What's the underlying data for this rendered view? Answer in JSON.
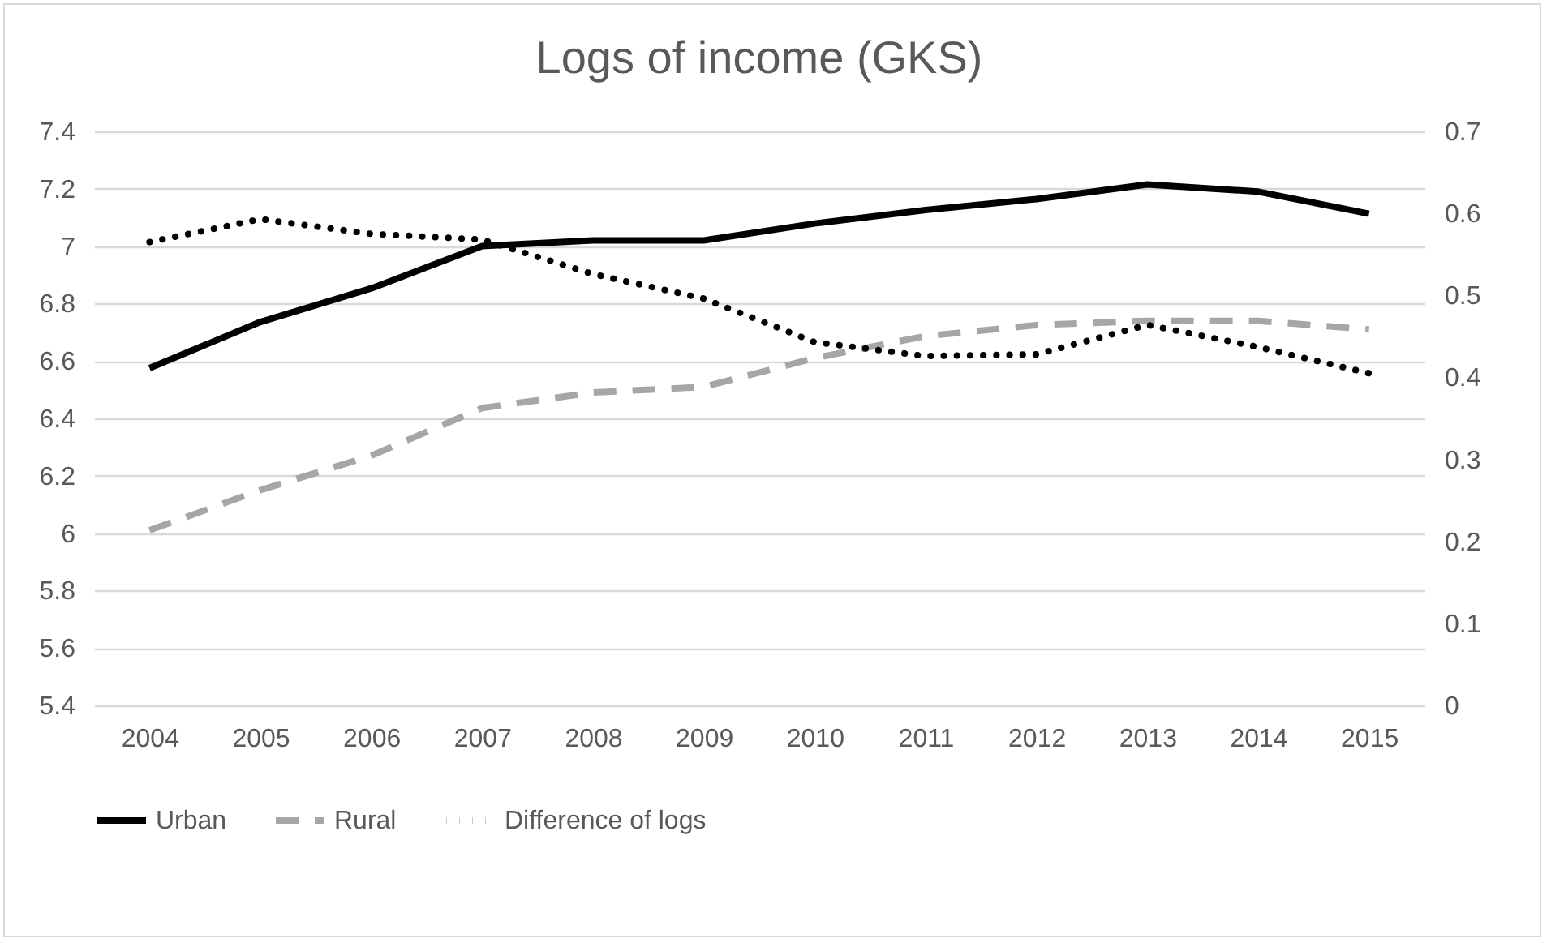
{
  "chart_data": {
    "type": "line",
    "title": "Logs of income (GKS)",
    "categories": [
      "2004",
      "2005",
      "2006",
      "2007",
      "2008",
      "2009",
      "2010",
      "2011",
      "2012",
      "2013",
      "2014",
      "2015"
    ],
    "series": [
      {
        "name": "Urban",
        "color": "#000000",
        "line_style": "solid",
        "values": [
          6.575,
          6.736,
          6.853,
          7.0,
          7.02,
          7.02,
          7.079,
          7.126,
          7.164,
          7.215,
          7.19,
          7.113
        ]
      },
      {
        "name": "Rural",
        "color": "#a6a6a6",
        "line_style": "dashed",
        "values": [
          6.01,
          6.15,
          6.27,
          6.436,
          6.49,
          6.51,
          6.61,
          6.687,
          6.725,
          6.74,
          6.74,
          6.71
        ]
      },
      {
        "name": "Difference of logs",
        "color": "#000000",
        "line_style": "dotted",
        "axis": "y2",
        "values": [
          0.565,
          0.593,
          0.575,
          0.568,
          0.526,
          0.496,
          0.443,
          0.426,
          0.428,
          0.464,
          0.437,
          0.405
        ]
      }
    ],
    "ylim": [
      5.4,
      7.4
    ],
    "yticks": [
      5.4,
      5.6,
      5.8,
      6,
      6.2,
      6.4,
      6.6,
      6.8,
      7,
      7.2,
      7.4
    ],
    "y2lim": [
      0,
      0.7
    ],
    "y2ticks": [
      0,
      0.1,
      0.2,
      0.3,
      0.4,
      0.5,
      0.6,
      0.7
    ],
    "grid": "y",
    "legend": "bottom",
    "marker": "none"
  }
}
